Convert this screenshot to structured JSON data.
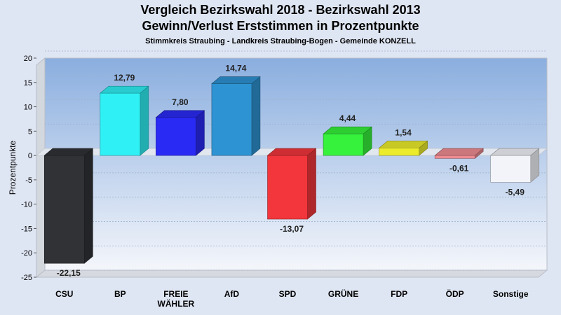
{
  "title": "Vergleich Bezirkswahl 2018 - Bezirkswahl 2013",
  "subtitle": "Gewinn/Verlust Erststimmen in Prozentpunkte",
  "subsubtitle": "Stimmkreis Straubing - Landkreis Straubing-Bogen - Gemeinde KONZELL",
  "chart_data": {
    "type": "bar",
    "ylabel": "Prozentpunkte",
    "ylim": [
      -25,
      20
    ],
    "yticks": [
      20,
      15,
      10,
      5,
      0,
      -5,
      -10,
      -15,
      -20,
      -25
    ],
    "grid": true,
    "categories": [
      [
        "CSU"
      ],
      [
        "BP"
      ],
      [
        "FREIE",
        "WÄHLER"
      ],
      [
        "AfD"
      ],
      [
        "SPD"
      ],
      [
        "GRÜNE"
      ],
      [
        "FDP"
      ],
      [
        "ÖDP"
      ],
      [
        "Sonstige"
      ]
    ],
    "values": [
      -22.15,
      12.79,
      7.8,
      14.74,
      -13.07,
      4.44,
      1.54,
      -0.61,
      -5.49
    ],
    "value_labels": [
      "-22,15",
      "12,79",
      "7,80",
      "14,74",
      "-13,07",
      "4,44",
      "1,54",
      "-0,61",
      "-5,49"
    ],
    "colors": [
      "#303236",
      "#2ff0f5",
      "#2a2af5",
      "#2e93d2",
      "#f2363c",
      "#36f23c",
      "#ecec2c",
      "#ef8c92",
      "#f2f4f9"
    ]
  }
}
